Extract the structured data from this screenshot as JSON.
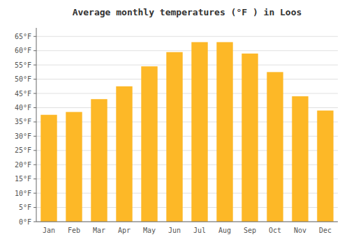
{
  "chart_data": {
    "type": "bar",
    "title": "Average monthly temperatures (°F ) in Loos",
    "categories": [
      "Jan",
      "Feb",
      "Mar",
      "Apr",
      "May",
      "Jun",
      "Jul",
      "Aug",
      "Sep",
      "Oct",
      "Nov",
      "Dec"
    ],
    "values": [
      37.5,
      38.5,
      43.0,
      47.5,
      54.5,
      59.5,
      63.0,
      63.0,
      59.0,
      52.5,
      44.0,
      39.0
    ],
    "color": "#FDB827",
    "ylim": [
      0,
      68
    ],
    "yticks": [
      {
        "value": 0,
        "label": "0°F"
      },
      {
        "value": 5,
        "label": "5°F"
      },
      {
        "value": 10,
        "label": "10°F"
      },
      {
        "value": 15,
        "label": "15°F"
      },
      {
        "value": 20,
        "label": "20°F"
      },
      {
        "value": 25,
        "label": "25°F"
      },
      {
        "value": 30,
        "label": "30°F"
      },
      {
        "value": 35,
        "label": "35°F"
      },
      {
        "value": 40,
        "label": "40°F"
      },
      {
        "value": 45,
        "label": "45°F"
      },
      {
        "value": 50,
        "label": "50°F"
      },
      {
        "value": 55,
        "label": "55°F"
      },
      {
        "value": 60,
        "label": "60°F"
      },
      {
        "value": 65,
        "label": "65°F"
      }
    ],
    "grid": true
  }
}
